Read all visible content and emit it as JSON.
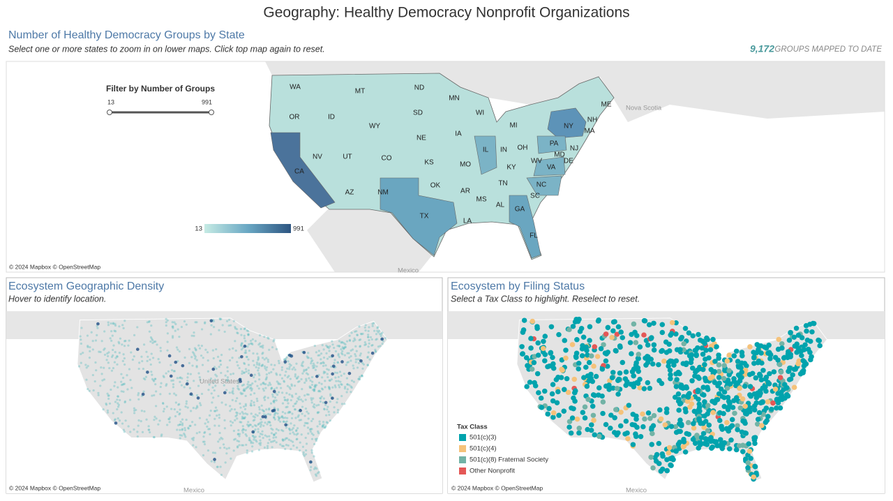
{
  "header": {
    "title": "Geography: Healthy Democracy Nonprofit Organizations"
  },
  "top_panel": {
    "title": "Number of Healthy Democracy Groups by State",
    "subtitle": "Select one or more states to zoom in on lower maps. Click top map again to reset.",
    "count": "9,172",
    "count_label": "GROUPS MAPPED TO DATE",
    "filter": {
      "label": "Filter by Number of Groups",
      "min": 13,
      "max": 991
    },
    "color_legend": {
      "min": 13,
      "max": 991
    },
    "states": [
      "WA",
      "MT",
      "ND",
      "MN",
      "ME",
      "OR",
      "ID",
      "SD",
      "WI",
      "NH",
      "NY",
      "MI",
      "WY",
      "MA",
      "NE",
      "IA",
      "PA",
      "NJ",
      "NV",
      "UT",
      "IL",
      "IN",
      "OH",
      "CO",
      "MD",
      "DE",
      "KS",
      "MO",
      "KY",
      "WV",
      "VA",
      "CA",
      "OK",
      "TN",
      "NC",
      "AR",
      "AZ",
      "NM",
      "SC",
      "MS",
      "AL",
      "GA",
      "TX",
      "LA",
      "FL"
    ],
    "place_labels": [
      "Nova Scotia",
      "Mexico"
    ],
    "attribution": "© 2024 Mapbox © OpenStreetMap"
  },
  "density_panel": {
    "title": "Ecosystem Geographic Density",
    "subtitle": "Hover to identify location.",
    "place_labels": [
      "United States",
      "Mexico"
    ],
    "attribution": "© 2024 Mapbox © OpenStreetMap"
  },
  "filing_panel": {
    "title": "Ecosystem by Filing Status",
    "subtitle": "Select a Tax Class to highlight. Reselect to reset.",
    "legend": {
      "title": "Tax Class",
      "items": [
        {
          "label": "501(c)(3)",
          "color": "#00a3ad"
        },
        {
          "label": "501(c)(4)",
          "color": "#f5c27a"
        },
        {
          "label": "501(c)(8) Fraternal Society",
          "color": "#72b3a6"
        },
        {
          "label": "Other Nonprofit",
          "color": "#e45756"
        }
      ]
    },
    "place_labels": [
      "Mexico"
    ],
    "attribution": "© 2024 Mapbox © OpenStreetMap"
  }
}
